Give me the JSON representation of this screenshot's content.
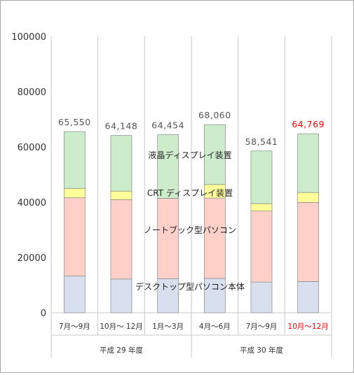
{
  "chart_data": {
    "type": "bar",
    "stacked": true,
    "ylim": [
      0,
      100000
    ],
    "y_ticks": [
      "0",
      "20000",
      "40000",
      "60000",
      "80000",
      "100000"
    ],
    "grid": "vertical lines between categories",
    "categories": [
      "7月～9月",
      "10月～ 12月",
      "1月～3月",
      "4月～6月",
      "7月～9月",
      "10月～12月"
    ],
    "category_colors": [
      "#333333",
      "#333333",
      "#333333",
      "#333333",
      "#333333",
      "#ff0000"
    ],
    "groups": [
      {
        "label": "平成 29 年度",
        "span": [
          0,
          2
        ]
      },
      {
        "label": "平成 30 年度",
        "span": [
          3,
          5
        ]
      }
    ],
    "totals": [
      "65,550",
      "64,148",
      "64,454",
      "68,060",
      "58,541",
      "64,769"
    ],
    "total_colors": [
      "#555555",
      "#555555",
      "#555555",
      "#555555",
      "#555555",
      "#ff0000"
    ],
    "series": [
      {
        "name": "デスクトップ型パソコン本体",
        "color": "#d8dfee",
        "values": [
          13300,
          12200,
          12300,
          12400,
          11100,
          11300
        ]
      },
      {
        "name": "ノートブック型パソコン",
        "color": "#ffd0c8",
        "values": [
          28300,
          28700,
          29100,
          29100,
          25700,
          28600
        ]
      },
      {
        "name": "CRT ディスプレイ装置",
        "color": "#ffff99",
        "values": [
          3400,
          3100,
          0,
          4900,
          2700,
          3600
        ]
      },
      {
        "name": "液晶ディスプレイ装置",
        "color": "#cceccc",
        "values": [
          20550,
          20148,
          23054,
          21660,
          19041,
          21269
        ]
      }
    ]
  }
}
